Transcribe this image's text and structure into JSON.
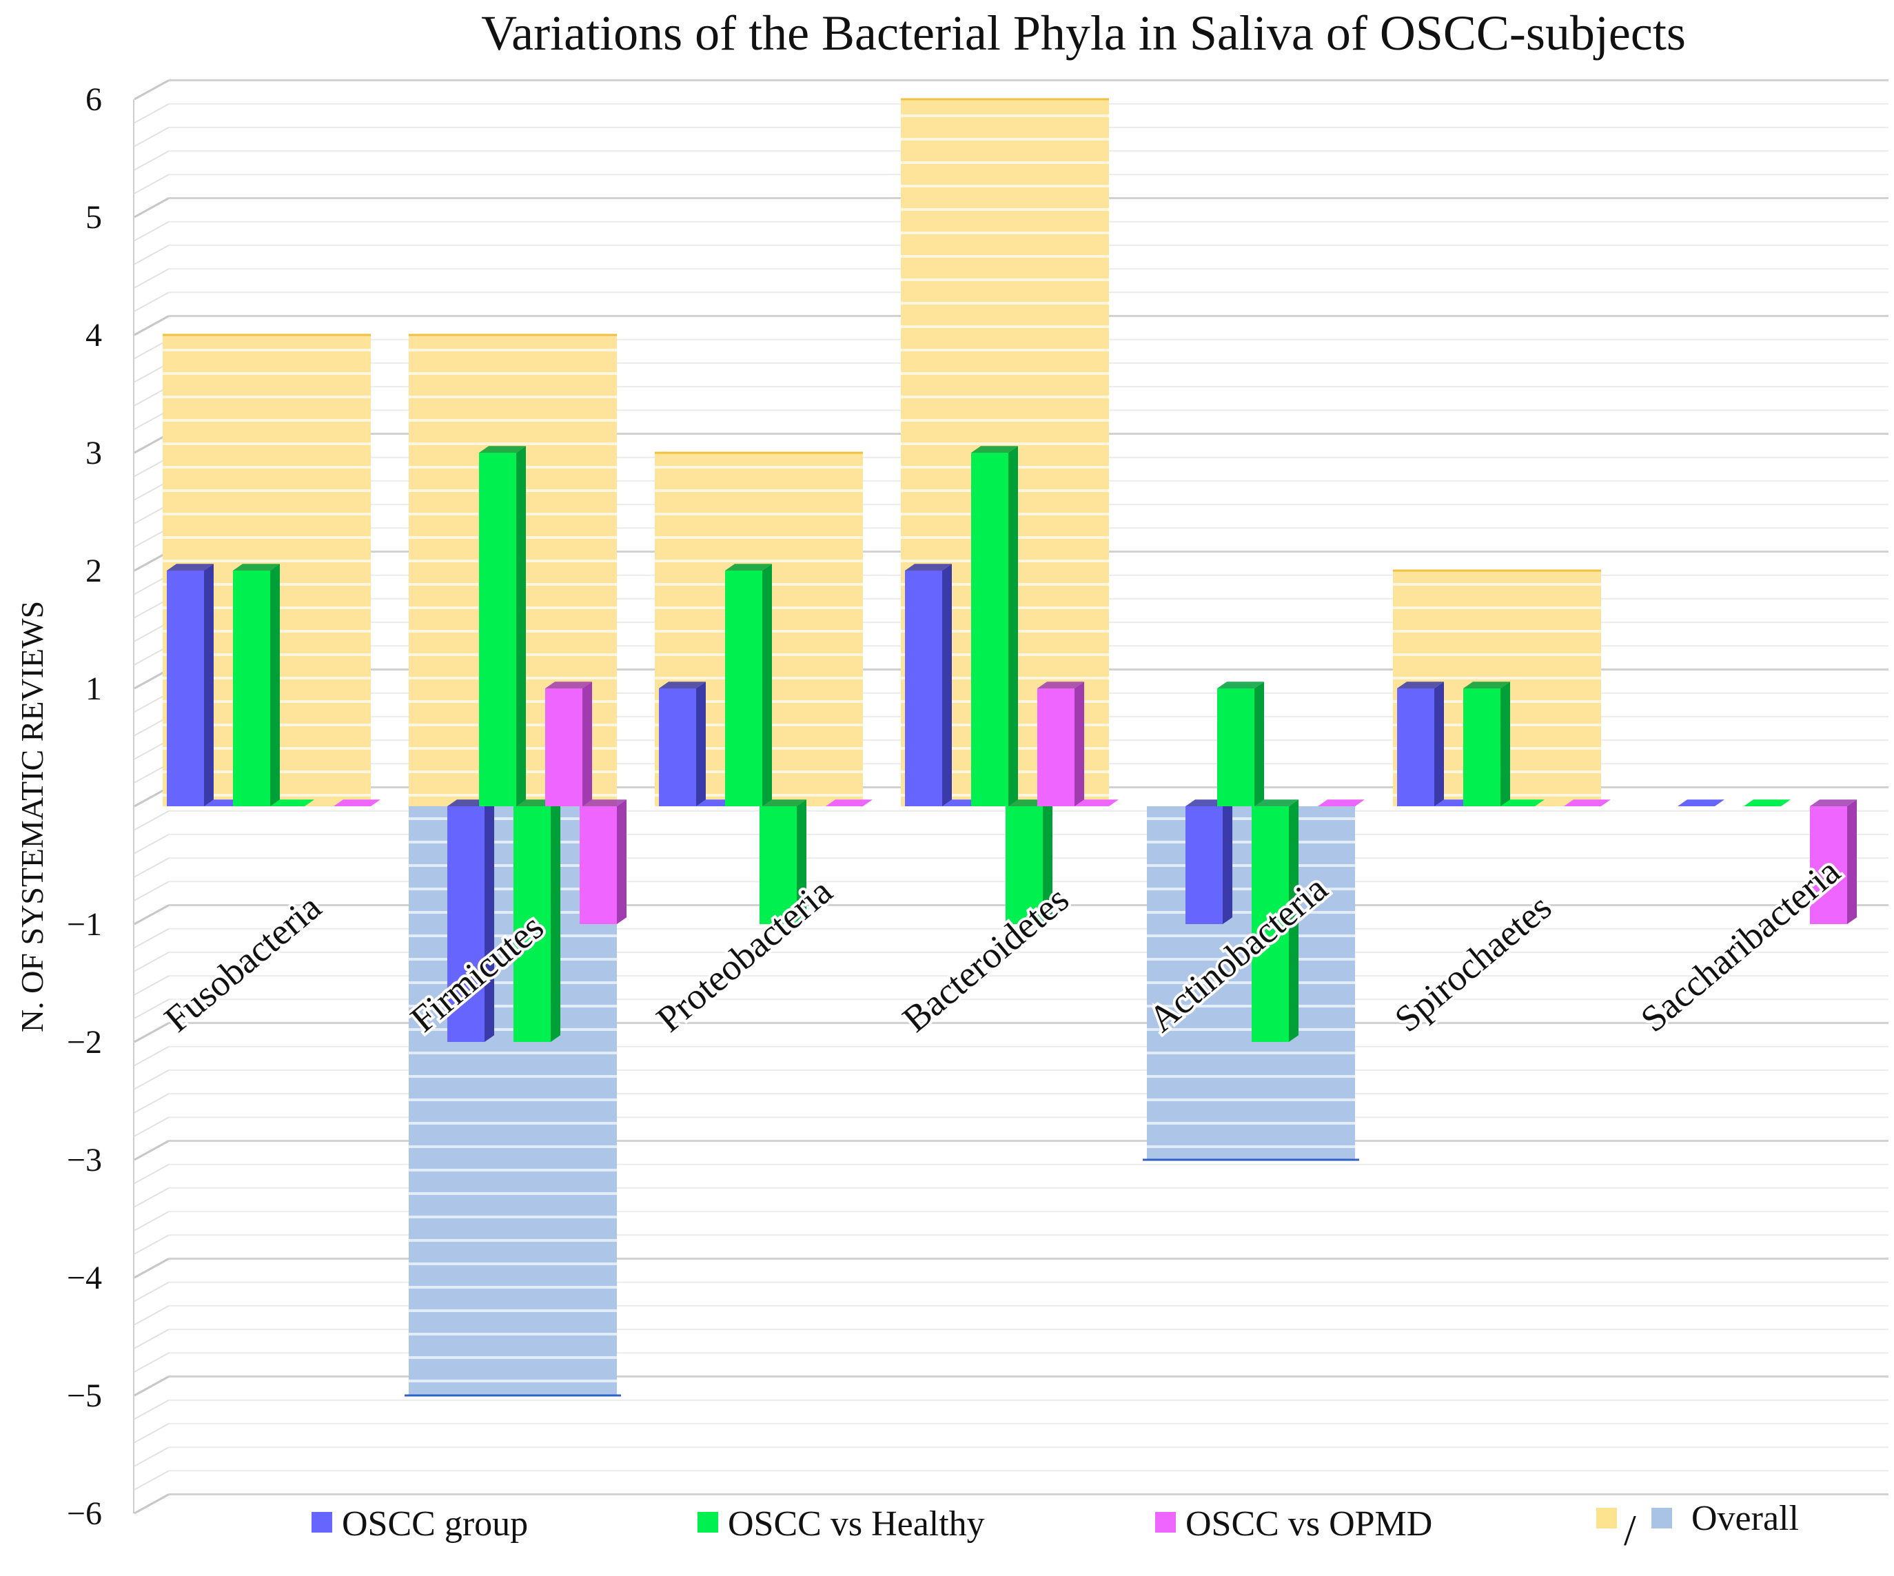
{
  "chart_data": {
    "type": "bar",
    "title": "Variations of the Bacterial Phyla in Saliva of OSCC-subjects",
    "ylabel": "N. OF SYSTEMATIC REVIEWS",
    "xlabel": "",
    "ylim": [
      -6,
      6
    ],
    "yticks": [
      6,
      5,
      4,
      3,
      2,
      1,
      0,
      -1,
      -2,
      -3,
      -4,
      -5,
      -6
    ],
    "ytick_labels": [
      "6",
      "5",
      "4",
      "3",
      "2",
      "1",
      "",
      "−1",
      "−2",
      "−3",
      "−4",
      "−5",
      "−6"
    ],
    "grid": true,
    "categories": [
      "Fusobacteria",
      "Firmicutes",
      "Proteobacteria",
      "Bacteroidetes",
      "Actinobacteria",
      "Spirochaetes",
      "Saccharibacteria"
    ],
    "overall": {
      "name": "Overall",
      "positive_color": "#fde28f",
      "negative_color": "#a9c3e6",
      "increase": [
        4,
        4,
        3,
        6,
        0,
        2,
        0
      ],
      "decrease": [
        0,
        -5,
        0,
        0,
        -3,
        0,
        0
      ]
    },
    "series": [
      {
        "name": "OSCC group",
        "color": "#6666ff",
        "side": "#3a3aa8",
        "increase": [
          2,
          0,
          1,
          2,
          0,
          1,
          0
        ],
        "decrease": [
          0,
          -2,
          0,
          0,
          -1,
          0,
          0
        ]
      },
      {
        "name": "OSCC vs Healthy",
        "color": "#00f050",
        "side": "#00a038",
        "increase": [
          2,
          3,
          2,
          3,
          1,
          1,
          0
        ],
        "decrease": [
          0,
          -2,
          -1,
          -1,
          -2,
          0,
          0
        ]
      },
      {
        "name": "OSCC vs OPMD",
        "color": "#ee66ff",
        "side": "#a03cb0",
        "increase": [
          0,
          1,
          0,
          1,
          0,
          0,
          0
        ],
        "decrease": [
          0,
          -1,
          0,
          0,
          0,
          0,
          -1
        ]
      }
    ],
    "legend": {
      "position": "bottom",
      "separator": "/",
      "items": [
        "OSCC group",
        "OSCC vs Healthy",
        "OSCC vs OPMD",
        "Overall"
      ]
    }
  }
}
